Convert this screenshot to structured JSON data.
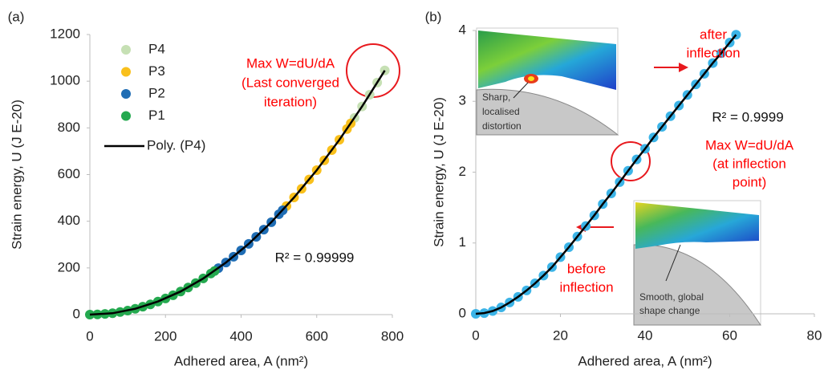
{
  "chart_data": [
    {
      "type": "scatter",
      "panel_label": "(a)",
      "x_label": "Adhered area, A (nm²)",
      "y_label": "Strain energy, U (J E-20)",
      "xlim": [
        0,
        800
      ],
      "xticks": [
        0,
        200,
        400,
        600,
        800
      ],
      "ylim": [
        0,
        1200
      ],
      "yticks": [
        0,
        200,
        400,
        600,
        800,
        1000,
        1200
      ],
      "legend": "upper left",
      "series": [
        {
          "name": "P4",
          "mode": "markers",
          "color": "#c6e0b4",
          "x": [
            700,
            720,
            740,
            760,
            780
          ],
          "values": [
            843,
            892,
            942,
            994,
            1046
          ]
        },
        {
          "name": "P3",
          "mode": "markers",
          "color": "#f9c01c",
          "x": [
            520,
            540,
            560,
            580,
            600,
            620,
            640,
            660,
            680,
            690
          ],
          "values": [
            465,
            502,
            539,
            579,
            619,
            661,
            705,
            749,
            795,
            819
          ]
        },
        {
          "name": "P2",
          "mode": "markers",
          "color": "#1f6db4",
          "x": [
            340,
            360,
            380,
            400,
            420,
            440,
            460,
            480,
            500,
            510
          ],
          "values": [
            199,
            223,
            248,
            275,
            303,
            333,
            364,
            396,
            430,
            447
          ]
        },
        {
          "name": "P1",
          "mode": "markers",
          "color": "#24a94f",
          "x": [
            0,
            20,
            40,
            60,
            80,
            100,
            120,
            140,
            160,
            180,
            200,
            220,
            240,
            260,
            280,
            300,
            320,
            330
          ],
          "values": [
            0,
            1,
            3,
            6,
            11,
            17,
            25,
            34,
            44,
            56,
            69,
            83,
            99,
            116,
            135,
            155,
            176,
            187
          ]
        },
        {
          "name": "Poly. (P4)",
          "mode": "line",
          "color": "#000000",
          "x": [
            0,
            60,
            120,
            180,
            240,
            300,
            360,
            420,
            480,
            540,
            600,
            660,
            720,
            780
          ],
          "values": [
            0,
            6,
            25,
            56,
            99,
            155,
            223,
            303,
            396,
            502,
            619,
            749,
            892,
            1046
          ]
        }
      ],
      "annotations": [
        {
          "text": "Max W=dU/dA",
          "color": "#ff0000"
        },
        {
          "text": "(Last converged",
          "color": "#ff0000"
        },
        {
          "text": "iteration)",
          "color": "#ff0000"
        },
        {
          "text": "R² = 0.99999",
          "color": "#111111"
        }
      ]
    },
    {
      "type": "scatter",
      "panel_label": "(b)",
      "x_label": "Adhered area, A (nm²)",
      "y_label": "Strain energy, U (J E-20)",
      "xlim": [
        0,
        80
      ],
      "xticks": [
        0,
        20,
        40,
        60,
        80
      ],
      "ylim": [
        0,
        4
      ],
      "yticks": [
        0,
        1,
        2,
        3,
        4
      ],
      "series": [
        {
          "mode": "markers",
          "color": "#3cb4e7",
          "x": [
            0,
            2,
            4,
            6,
            8,
            10,
            12,
            14,
            16,
            18,
            20,
            22,
            24,
            26,
            28,
            30,
            32,
            34,
            36,
            38,
            40,
            42,
            44,
            46,
            48,
            50,
            52,
            54,
            56,
            58,
            60,
            61.5
          ],
          "values": [
            0,
            0.01,
            0.04,
            0.09,
            0.16,
            0.24,
            0.33,
            0.43,
            0.54,
            0.66,
            0.8,
            0.94,
            1.09,
            1.24,
            1.39,
            1.55,
            1.7,
            1.86,
            2.02,
            2.18,
            2.33,
            2.49,
            2.64,
            2.79,
            2.94,
            3.09,
            3.24,
            3.39,
            3.54,
            3.68,
            3.83,
            3.94
          ]
        },
        {
          "mode": "line",
          "color": "#000000",
          "x": [
            0,
            2,
            4,
            6,
            8,
            10,
            12,
            14,
            16,
            18,
            20,
            22,
            24,
            26,
            28,
            30,
            32,
            34,
            36,
            38,
            40,
            42,
            44,
            46,
            48,
            50,
            52,
            54,
            56,
            58,
            60,
            61.5
          ],
          "values": [
            0,
            0.01,
            0.04,
            0.09,
            0.16,
            0.24,
            0.33,
            0.43,
            0.54,
            0.66,
            0.8,
            0.94,
            1.09,
            1.24,
            1.39,
            1.55,
            1.7,
            1.86,
            2.02,
            2.18,
            2.33,
            2.49,
            2.64,
            2.79,
            2.94,
            3.09,
            3.24,
            3.39,
            3.54,
            3.68,
            3.83,
            3.94
          ]
        }
      ],
      "annotations": [
        {
          "text": "after",
          "color": "#ff0000"
        },
        {
          "text": "inflection",
          "color": "#ff0000"
        },
        {
          "text": "R² = 0.9999",
          "color": "#111111"
        },
        {
          "text": "Max W=dU/dA",
          "color": "#ff0000"
        },
        {
          "text": "(at inflection",
          "color": "#ff0000"
        },
        {
          "text": "point)",
          "color": "#ff0000"
        },
        {
          "text": "before",
          "color": "#ff0000"
        },
        {
          "text": "inflection",
          "color": "#ff0000"
        },
        {
          "text": "Sharp,",
          "color": "#333333"
        },
        {
          "text": "localised",
          "color": "#333333"
        },
        {
          "text": "distortion",
          "color": "#333333"
        },
        {
          "text": "Smooth, global",
          "color": "#333333"
        },
        {
          "text": "shape change",
          "color": "#333333"
        }
      ]
    }
  ]
}
